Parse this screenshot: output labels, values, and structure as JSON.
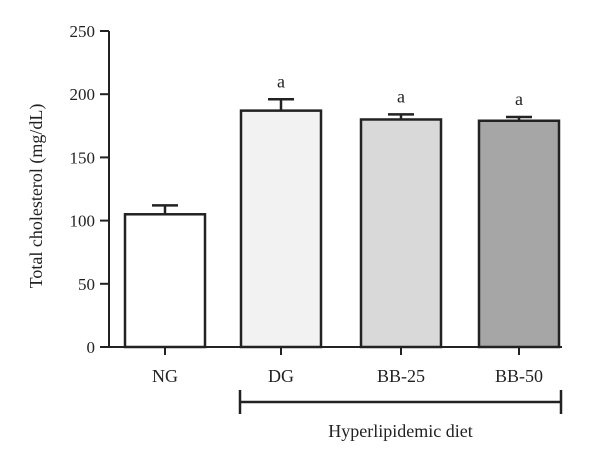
{
  "chart_data": {
    "type": "bar",
    "title": "",
    "xlabel": "",
    "ylabel": "Total cholesterol (mg/dL)",
    "ylim": [
      0,
      250
    ],
    "yticks": [
      0,
      50,
      100,
      150,
      200,
      250
    ],
    "yticks_text": [
      "0",
      "50",
      "100",
      "150",
      "200",
      "250"
    ],
    "categories": [
      "NG",
      "DG",
      "BB-25",
      "BB-50"
    ],
    "values": [
      105,
      187,
      180,
      179
    ],
    "errors": [
      7,
      9,
      4,
      3
    ],
    "bar_colors": [
      "#ffffff",
      "#f2f2f2",
      "#d9d9d9",
      "#a6a6a6"
    ],
    "significance": [
      "",
      "a",
      "a",
      "a"
    ],
    "group_bracket": {
      "label": "Hyperlipidemic diet",
      "from_category": 1,
      "to_category": 3
    },
    "grid": false,
    "legend": "none"
  }
}
